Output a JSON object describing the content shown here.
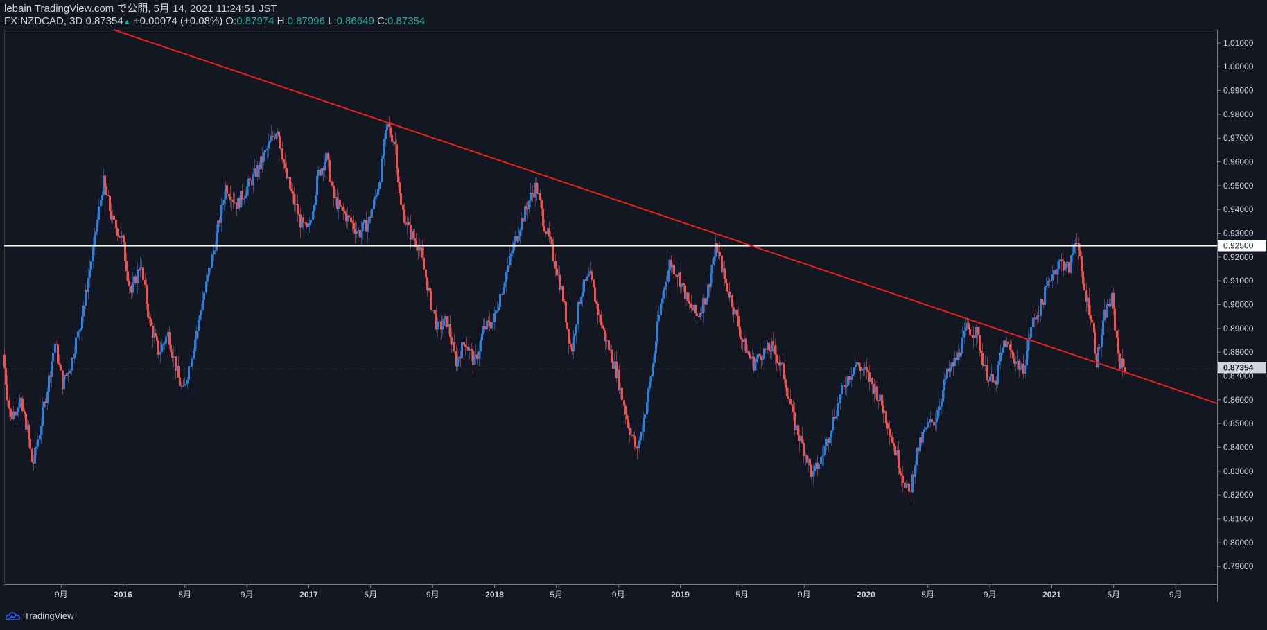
{
  "header": {
    "publisher": "lebain TradingView.com で公開, 5月 14, 2021 11:24:51 JST",
    "symbol": "FX:NZDCAD, 3D",
    "last": "0.87354",
    "change": "+0.00074 (+0.08%)",
    "o_label": "O:",
    "o_value": "0.87974",
    "h_label": "H:",
    "h_value": "0.87996",
    "l_label": "L:",
    "l_value": "0.86649",
    "c_label": "C:",
    "c_value": "0.87354"
  },
  "brand": {
    "label": "TradingView"
  },
  "colors": {
    "background": "#131722",
    "up": "#2f7fd8",
    "down": "#ef5350",
    "trendline": "#e8211d",
    "level": "#ffffff",
    "axis_text": "#d1d4dc"
  },
  "chart_data": {
    "type": "candlestick",
    "symbol": "FX:NZDCAD",
    "interval": "3D",
    "ylim": [
      0.7825,
      1.0155
    ],
    "y_ticks": [
      "1.01000",
      "1.00000",
      "0.99000",
      "0.98000",
      "0.97000",
      "0.96000",
      "0.95000",
      "0.94000",
      "0.93000",
      "0.92000",
      "0.91000",
      "0.90000",
      "0.89000",
      "0.88000",
      "0.87000",
      "0.86000",
      "0.85000",
      "0.84000",
      "0.83000",
      "0.82000",
      "0.81000",
      "0.80000",
      "0.79000"
    ],
    "x_ticks": [
      {
        "label": "9月",
        "t": 2015.667
      },
      {
        "label": "2016",
        "t": 2016.0
      },
      {
        "label": "5月",
        "t": 2016.333
      },
      {
        "label": "9月",
        "t": 2016.667
      },
      {
        "label": "2017",
        "t": 2017.0
      },
      {
        "label": "5月",
        "t": 2017.333
      },
      {
        "label": "9月",
        "t": 2017.667
      },
      {
        "label": "2018",
        "t": 2018.0
      },
      {
        "label": "5月",
        "t": 2018.333
      },
      {
        "label": "9月",
        "t": 2018.667
      },
      {
        "label": "2019",
        "t": 2019.0
      },
      {
        "label": "5月",
        "t": 2019.333
      },
      {
        "label": "9月",
        "t": 2019.667
      },
      {
        "label": "2020",
        "t": 2020.0
      },
      {
        "label": "5月",
        "t": 2020.333
      },
      {
        "label": "9月",
        "t": 2020.667
      },
      {
        "label": "2021",
        "t": 2021.0
      },
      {
        "label": "5月",
        "t": 2021.333
      },
      {
        "label": "9月",
        "t": 2021.667
      }
    ],
    "x_range": [
      2015.36,
      2021.89
    ],
    "price_path": [
      [
        2015.36,
        0.879
      ],
      [
        2015.4,
        0.852
      ],
      [
        2015.45,
        0.86
      ],
      [
        2015.49,
        0.848
      ],
      [
        2015.52,
        0.832
      ],
      [
        2015.56,
        0.848
      ],
      [
        2015.6,
        0.866
      ],
      [
        2015.64,
        0.884
      ],
      [
        2015.68,
        0.867
      ],
      [
        2015.72,
        0.874
      ],
      [
        2015.78,
        0.893
      ],
      [
        2015.85,
        0.925
      ],
      [
        2015.9,
        0.952
      ],
      [
        2015.95,
        0.935
      ],
      [
        2016.0,
        0.928
      ],
      [
        2016.05,
        0.905
      ],
      [
        2016.1,
        0.918
      ],
      [
        2016.15,
        0.892
      ],
      [
        2016.2,
        0.88
      ],
      [
        2016.25,
        0.888
      ],
      [
        2016.3,
        0.87
      ],
      [
        2016.33,
        0.863
      ],
      [
        2016.38,
        0.88
      ],
      [
        2016.43,
        0.9
      ],
      [
        2016.5,
        0.925
      ],
      [
        2016.56,
        0.95
      ],
      [
        2016.62,
        0.942
      ],
      [
        2016.68,
        0.95
      ],
      [
        2016.72,
        0.955
      ],
      [
        2016.78,
        0.965
      ],
      [
        2016.84,
        0.975
      ],
      [
        2016.88,
        0.955
      ],
      [
        2016.92,
        0.945
      ],
      [
        2016.96,
        0.935
      ],
      [
        2017.0,
        0.93
      ],
      [
        2017.06,
        0.955
      ],
      [
        2017.1,
        0.962
      ],
      [
        2017.14,
        0.945
      ],
      [
        2017.18,
        0.94
      ],
      [
        2017.23,
        0.935
      ],
      [
        2017.28,
        0.93
      ],
      [
        2017.33,
        0.935
      ],
      [
        2017.38,
        0.95
      ],
      [
        2017.43,
        0.975
      ],
      [
        2017.47,
        0.968
      ],
      [
        2017.5,
        0.942
      ],
      [
        2017.55,
        0.93
      ],
      [
        2017.6,
        0.925
      ],
      [
        2017.65,
        0.906
      ],
      [
        2017.7,
        0.89
      ],
      [
        2017.75,
        0.893
      ],
      [
        2017.8,
        0.876
      ],
      [
        2017.85,
        0.885
      ],
      [
        2017.9,
        0.875
      ],
      [
        2017.95,
        0.89
      ],
      [
        2018.0,
        0.893
      ],
      [
        2018.05,
        0.908
      ],
      [
        2018.1,
        0.922
      ],
      [
        2018.15,
        0.935
      ],
      [
        2018.2,
        0.945
      ],
      [
        2018.23,
        0.95
      ],
      [
        2018.27,
        0.935
      ],
      [
        2018.32,
        0.922
      ],
      [
        2018.37,
        0.905
      ],
      [
        2018.42,
        0.88
      ],
      [
        2018.47,
        0.905
      ],
      [
        2018.52,
        0.912
      ],
      [
        2018.57,
        0.895
      ],
      [
        2018.62,
        0.882
      ],
      [
        2018.67,
        0.87
      ],
      [
        2018.72,
        0.852
      ],
      [
        2018.77,
        0.838
      ],
      [
        2018.8,
        0.848
      ],
      [
        2018.85,
        0.87
      ],
      [
        2018.9,
        0.9
      ],
      [
        2018.95,
        0.918
      ],
      [
        2019.0,
        0.912
      ],
      [
        2019.05,
        0.9
      ],
      [
        2019.1,
        0.895
      ],
      [
        2019.15,
        0.905
      ],
      [
        2019.2,
        0.925
      ],
      [
        2019.24,
        0.912
      ],
      [
        2019.29,
        0.9
      ],
      [
        2019.34,
        0.885
      ],
      [
        2019.4,
        0.875
      ],
      [
        2019.45,
        0.88
      ],
      [
        2019.5,
        0.882
      ],
      [
        2019.56,
        0.872
      ],
      [
        2019.62,
        0.85
      ],
      [
        2019.67,
        0.84
      ],
      [
        2019.72,
        0.828
      ],
      [
        2019.78,
        0.838
      ],
      [
        2019.84,
        0.855
      ],
      [
        2019.9,
        0.868
      ],
      [
        2019.95,
        0.875
      ],
      [
        2020.0,
        0.872
      ],
      [
        2020.06,
        0.864
      ],
      [
        2020.11,
        0.854
      ],
      [
        2020.16,
        0.84
      ],
      [
        2020.21,
        0.826
      ],
      [
        2020.24,
        0.82
      ],
      [
        2020.28,
        0.838
      ],
      [
        2020.33,
        0.848
      ],
      [
        2020.38,
        0.852
      ],
      [
        2020.44,
        0.87
      ],
      [
        2020.5,
        0.878
      ],
      [
        2020.55,
        0.89
      ],
      [
        2020.6,
        0.888
      ],
      [
        2020.65,
        0.872
      ],
      [
        2020.7,
        0.866
      ],
      [
        2020.75,
        0.885
      ],
      [
        2020.8,
        0.878
      ],
      [
        2020.85,
        0.872
      ],
      [
        2020.9,
        0.892
      ],
      [
        2020.95,
        0.9
      ],
      [
        2021.0,
        0.912
      ],
      [
        2021.05,
        0.918
      ],
      [
        2021.1,
        0.915
      ],
      [
        2021.14,
        0.93
      ],
      [
        2021.17,
        0.91
      ],
      [
        2021.22,
        0.895
      ],
      [
        2021.25,
        0.876
      ],
      [
        2021.29,
        0.895
      ],
      [
        2021.33,
        0.903
      ],
      [
        2021.37,
        0.876
      ],
      [
        2021.39,
        0.8735
      ]
    ],
    "lines": [
      {
        "name": "",
        "kind": "horizontal",
        "value": 0.925,
        "label": "0.92500"
      },
      {
        "name": "",
        "kind": "trend",
        "from": [
          2015.95,
          1.0155
        ],
        "to": [
          2021.89,
          0.8585
        ]
      }
    ],
    "last_price": {
      "value": 0.87354,
      "label": "0.87354"
    }
  }
}
